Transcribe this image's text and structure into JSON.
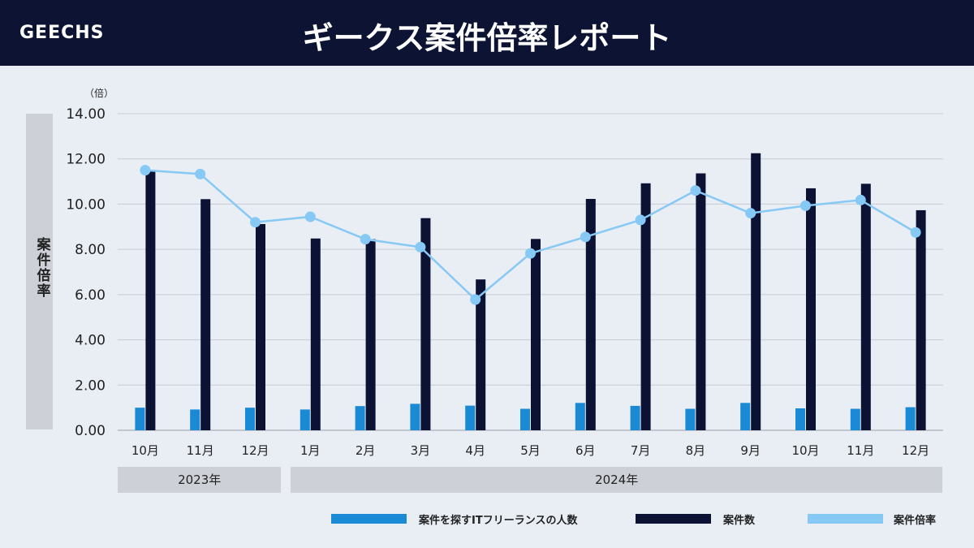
{
  "header": {
    "logo": "GEECHS",
    "title": "ギークス案件倍率レポート"
  },
  "colors": {
    "header_bg": "#0d1433",
    "series_people": "#1a8ad4",
    "series_jobs": "#0c1233",
    "series_ratio": "#86c9f5"
  },
  "chart_data": {
    "type": "bar",
    "ylabel": "案件倍率",
    "yunit": "（倍）",
    "ylim": [
      0,
      14
    ],
    "yticks": [
      "0.00",
      "2.00",
      "4.00",
      "6.00",
      "8.00",
      "10.00",
      "12.00",
      "14.00"
    ],
    "grid": true,
    "categories": [
      "10月",
      "11月",
      "12月",
      "1月",
      "2月",
      "3月",
      "4月",
      "5月",
      "6月",
      "7月",
      "8月",
      "9月",
      "10月",
      "11月",
      "12月"
    ],
    "year_groups": [
      {
        "label": "2023年",
        "months": 3
      },
      {
        "label": "2024年",
        "months": 12
      }
    ],
    "series": [
      {
        "name": "案件を探すITフリーランスの人数",
        "type": "bar",
        "values": [
          1.0,
          0.92,
          1.0,
          0.92,
          1.07,
          1.17,
          1.09,
          0.95,
          1.21,
          1.08,
          0.95,
          1.21,
          0.97,
          0.95,
          1.02
        ]
      },
      {
        "name": "案件数",
        "type": "bar",
        "values": [
          11.45,
          10.22,
          9.12,
          8.48,
          8.45,
          9.38,
          6.67,
          8.46,
          10.23,
          10.92,
          11.36,
          12.25,
          10.7,
          10.9,
          9.73
        ]
      },
      {
        "name": "案件倍率",
        "type": "line",
        "values": [
          11.5,
          11.33,
          9.2,
          9.44,
          8.45,
          8.1,
          5.78,
          7.82,
          8.55,
          9.3,
          10.6,
          9.6,
          9.93,
          10.18,
          8.75
        ]
      }
    ],
    "legend_position": "bottom-right"
  }
}
